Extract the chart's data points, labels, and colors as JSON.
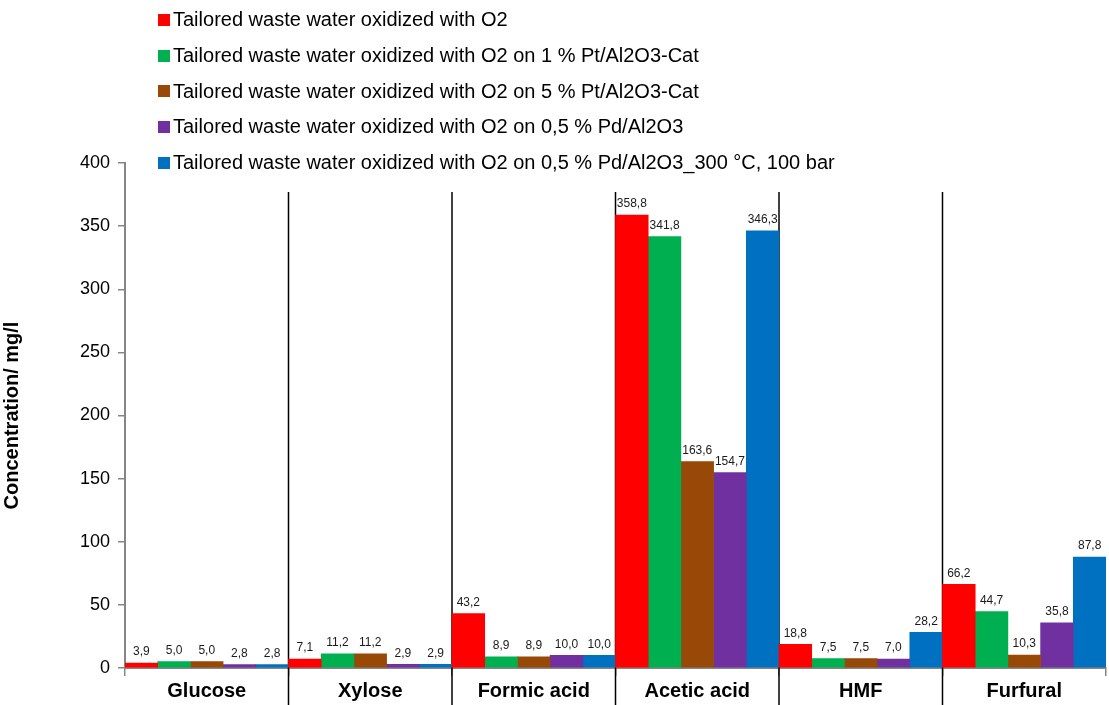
{
  "chart_data": {
    "type": "bar",
    "ylabel": "Concentration/ mg/l",
    "categories": [
      "Glucose",
      "Xylose",
      "Formic acid",
      "Acetic acid",
      "HMF",
      "Furfural"
    ],
    "series": [
      {
        "name": "Tailored waste water oxidized with O2",
        "color": "#ff0000",
        "values": [
          3.9,
          7.1,
          43.2,
          358.8,
          18.8,
          66.2
        ],
        "value_labels": [
          "3,9",
          "7,1",
          "43,2",
          "358,8",
          "18,8",
          "66,2"
        ]
      },
      {
        "name": "Tailored waste water oxidized with O2 on 1 % Pt/Al2O3-Cat",
        "color": "#00b050",
        "values": [
          5.0,
          11.2,
          8.9,
          341.8,
          7.5,
          44.7
        ],
        "value_labels": [
          "5,0",
          "11,2",
          "8,9",
          "341,8",
          "7,5",
          "44,7"
        ]
      },
      {
        "name": "Tailored waste water oxidized with O2 on 5 % Pt/Al2O3-Cat",
        "color": "#984807",
        "values": [
          5.0,
          11.2,
          8.9,
          163.6,
          7.5,
          10.3
        ],
        "value_labels": [
          "5,0",
          "11,2",
          "8,9",
          "163,6",
          "7,5",
          "10,3"
        ]
      },
      {
        "name": "Tailored waste water oxidized with O2 on 0,5 % Pd/Al2O3",
        "color": "#7030a0",
        "values": [
          2.8,
          2.9,
          10.0,
          154.7,
          7.0,
          35.8
        ],
        "value_labels": [
          "2,8",
          "2,9",
          "10,0",
          "154,7",
          "7,0",
          "35,8"
        ]
      },
      {
        "name": "Tailored waste water oxidized with O2 on 0,5 % Pd/Al2O3_300 °C, 100 bar",
        "color": "#0070c0",
        "values": [
          2.8,
          2.9,
          10.0,
          346.3,
          28.2,
          87.8
        ],
        "value_labels": [
          "2,8",
          "2,9",
          "10,0",
          "346,3",
          "28,2",
          "87,8"
        ]
      }
    ],
    "ylim": [
      0,
      400
    ],
    "yticks": [
      0,
      50,
      100,
      150,
      200,
      250,
      300,
      350,
      400
    ],
    "grid": "x",
    "legend": "top left"
  }
}
